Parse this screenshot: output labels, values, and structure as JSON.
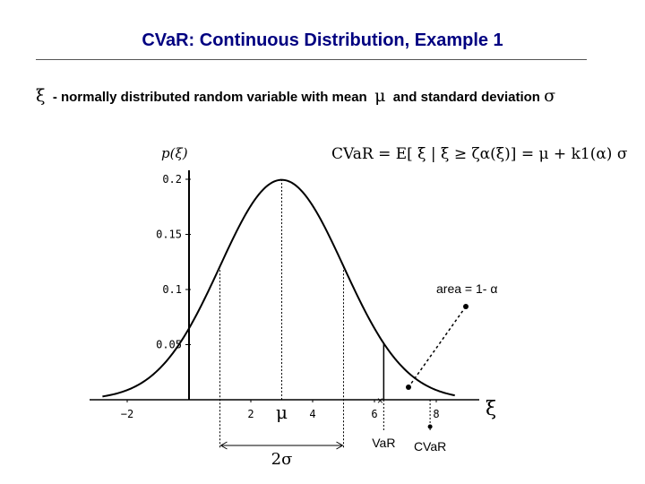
{
  "slide": {
    "title": "CVaR: Continuous Distribution, Example 1",
    "subtitle_symbol": "ξ",
    "subtitle_text": "- normally distributed random variable with mean",
    "subtitle_mu": "μ",
    "subtitle_text2": "and standard deviation",
    "subtitle_sigma": "σ",
    "formula": "CVaR = E[ ξ | ξ ≥ ζα(ξ)] = μ + k1(α) σ"
  },
  "chart_data": {
    "type": "line",
    "title": "",
    "ylabel": "p(ξ)",
    "xlabel": "ξ",
    "distribution": "normal",
    "mean": 3,
    "sd": 2,
    "x_range": [
      -2.8,
      8.6
    ],
    "ylim": [
      0,
      0.21
    ],
    "x_ticks": [
      {
        "value": -2,
        "label": "−2"
      },
      {
        "value": 2,
        "label": "2"
      },
      {
        "value": 4,
        "label": "4"
      },
      {
        "value": 6,
        "label": "6"
      },
      {
        "value": 8,
        "label": "8"
      }
    ],
    "y_ticks": [
      {
        "value": 0.05,
        "label": "0.05"
      },
      {
        "value": 0.1,
        "label": "0.1"
      },
      {
        "value": 0.15,
        "label": "0.15"
      },
      {
        "value": 0.2,
        "label": "0.2"
      }
    ],
    "mean_label": "μ",
    "sigma_lines": [
      1,
      5
    ],
    "two_sigma_label": "2σ",
    "var_x": 6.3,
    "cvar_x": 7.8,
    "var_label": "VaR",
    "cvar_label": "CVaR",
    "area_label": "area = 1- α"
  }
}
